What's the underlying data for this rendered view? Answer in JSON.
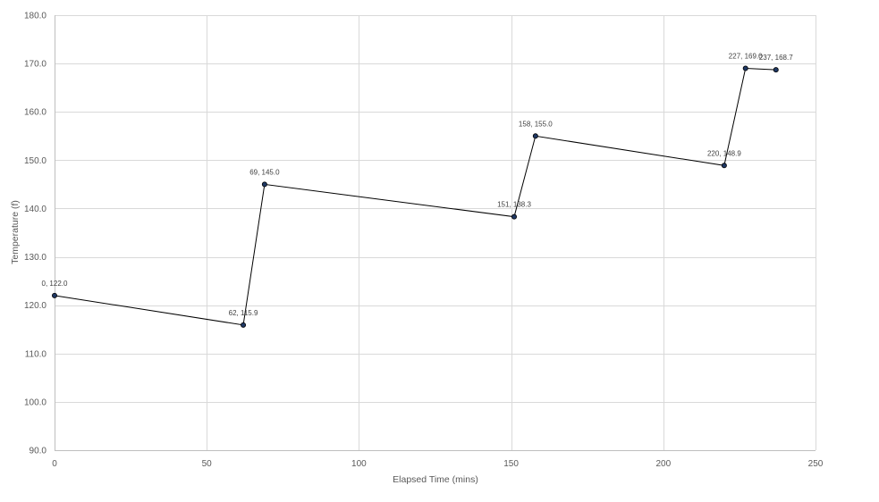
{
  "chart_data": {
    "type": "scatter",
    "title": "",
    "xlabel": "Elapsed Time (mins)",
    "ylabel": "Temperature (f)",
    "xlim": [
      0,
      250
    ],
    "ylim": [
      90,
      180
    ],
    "x_ticks": [
      0,
      50,
      100,
      150,
      200,
      250
    ],
    "y_ticks": [
      90,
      100,
      110,
      120,
      130,
      140,
      150,
      160,
      170,
      180
    ],
    "x_tick_labels": [
      "0",
      "50",
      "100",
      "150",
      "200",
      "250"
    ],
    "y_tick_labels": [
      "90.0",
      "100.0",
      "110.0",
      "120.0",
      "130.0",
      "140.0",
      "150.0",
      "160.0",
      "170.0",
      "180.0"
    ],
    "grid": true,
    "legend": "none",
    "line_color": "#000000",
    "marker_color": "#1f3864",
    "series": [
      {
        "points": [
          {
            "x": 0,
            "y": 122.0,
            "label": "0, 122.0"
          },
          {
            "x": 62,
            "y": 115.9,
            "label": "62, 115.9"
          },
          {
            "x": 69,
            "y": 145.0,
            "label": "69, 145.0"
          },
          {
            "x": 151,
            "y": 138.3,
            "label": "151, 138.3"
          },
          {
            "x": 158,
            "y": 155.0,
            "label": "158, 155.0"
          },
          {
            "x": 220,
            "y": 148.9,
            "label": "220, 148.9"
          },
          {
            "x": 227,
            "y": 169.0,
            "label": "227, 169.0"
          },
          {
            "x": 237,
            "y": 168.7,
            "label": "237, 168.7"
          }
        ]
      }
    ]
  }
}
